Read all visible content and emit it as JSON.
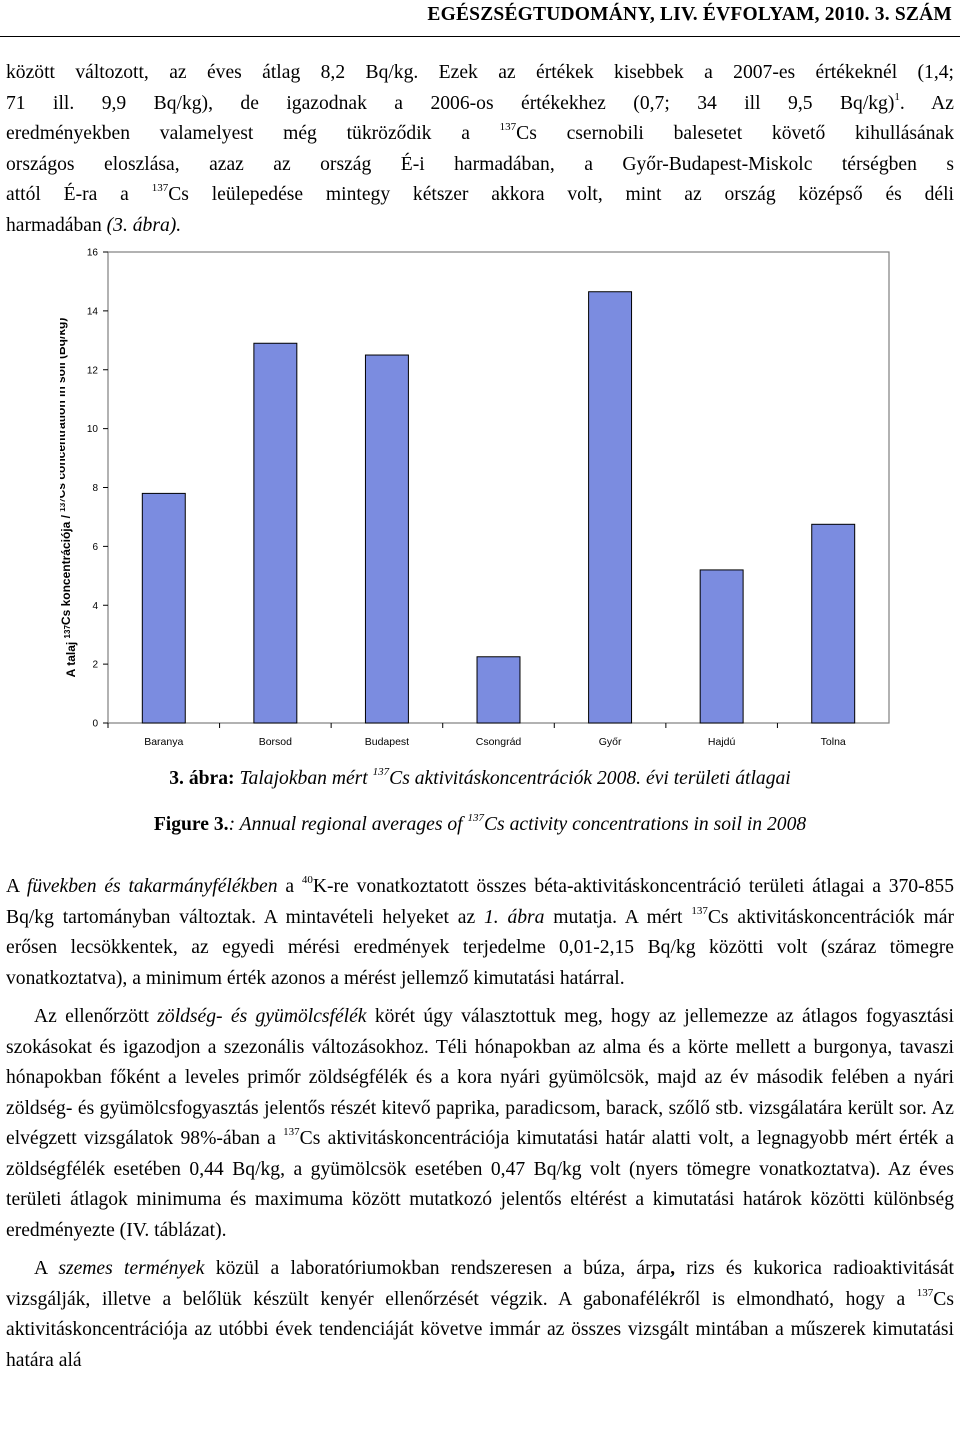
{
  "header": {
    "journal": "EGÉSZSÉGTUDOMÁNY, LIV. ÉVFOLYAM, 2010. 3. SZÁM"
  },
  "para1": {
    "l1": "között változott, az éves átlag 8,2 Bq/kg. Ezek az értékek kisebbek a 2007-es értékeknél (1,4;",
    "l2a": "71 ill. 9,9 Bq/kg), de igazodnak a 2006-os értékekhez (0,7; 34 ill 9,5 Bq/kg)",
    "l2sup": "1",
    "l2b": ". Az",
    "l3a": "eredményekben valamelyest még tükröződik a ",
    "l3sup": "137",
    "l3b": "Cs csernobili balesetet követő kihullásának",
    "l4": "országos eloszlása, azaz az ország É-i harmadában, a Győr-Budapest-Miskolc térségben s",
    "l5a": "attól É-ra a ",
    "l5sup": "137",
    "l5b": "Cs leülepedése mintegy kétszer akkora volt, mint az ország középső és déli",
    "l6a": "harmadában ",
    "l6b": "(3. ábra)."
  },
  "chart_data": {
    "type": "bar",
    "categories": [
      "Baranya",
      "Borsod",
      "Budapest",
      "Csongrád",
      "Győr",
      "Hajdú",
      "Tolna"
    ],
    "values": [
      7.8,
      12.9,
      12.5,
      2.25,
      14.65,
      5.2,
      6.75
    ],
    "ylabel_a": "A talaj ",
    "ylabel_sup": "137",
    "ylabel_b": "Cs koncentrációja / ",
    "ylabel_sup2": "137",
    "ylabel_c": "Cs concentration in soil (Bq/kg)",
    "ylim": [
      0,
      16
    ],
    "yticks": [
      "0",
      "2",
      "4",
      "6",
      "8",
      "10",
      "12",
      "14",
      "16"
    ],
    "bar_color": "#7b8ce0",
    "plot_border": "#7f7f7f",
    "grid": false
  },
  "caption_hu": {
    "label": "3. ábra:",
    "text_a": " Talajokban mért ",
    "sup": "137",
    "text_b": "Cs aktivitáskoncentrációk 2008. évi területi átlagai"
  },
  "caption_en": {
    "label": "Figure 3.",
    "text_a": ": Annual regional averages of ",
    "sup": "137",
    "text_b": "Cs activity concentrations in soil in 2008"
  },
  "para2": {
    "a": "A ",
    "b": "füvekben és takarmányfélékben",
    "c": " a ",
    "sup1": "40",
    "d": "K-re vonatkoztatott összes béta-aktivitáskoncentráció területi átlagai a 370-855 Bq/kg tartományban változtak. A mintavételi helyeket az ",
    "e": "1. ábra",
    "f": " mutatja. A mért ",
    "sup2": "137",
    "g": "Cs aktivitáskoncentrációk már erősen lecsökkentek, az egyedi mérési eredmények terjedelme 0,01-2,15 Bq/kg közötti volt (száraz tömegre vonatkoztatva), a minimum érték azonos a mérést jellemző kimutatási határral."
  },
  "para3": {
    "a": "Az ellenőrzött ",
    "b": "zöldség- és gyümölcsfélék",
    "c": " körét úgy választottuk meg, hogy az jellemezze az átlagos fogyasztási szokásokat és igazodjon a szezonális változásokhoz. Téli hónapokban az alma és a körte mellett a burgonya, tavaszi hónapokban főként a leveles primőr zöldségfélék és a kora nyári gyümölcsök, majd az év második felében a nyári zöldség- és gyümölcsfogyasztás jelentős részét kitevő paprika, paradicsom, barack, szőlő stb. vizsgálatára került sor. Az elvégzett vizsgálatok 98%-ában a ",
    "sup": "137",
    "d": "Cs aktivitáskoncentrációja kimutatási határ alatti volt, a legnagyobb mért érték a zöldségfélék esetében 0,44 Bq/kg, a gyümölcsök esetében 0,47 Bq/kg volt (nyers tömegre vonatkoztatva). Az éves területi átlagok minimuma és maximuma között mutatkozó jelentős eltérést a kimutatási határok közötti különbség eredményezte (IV. táblázat)."
  },
  "para4": {
    "a": "A ",
    "b": "szemes termények",
    "c": " közül a laboratóriumokban rendszeresen a búza, árpa",
    "d": ",",
    "e": " rizs és kukorica radioaktivitását vizsgálják, illetve a belőlük készült kenyér ellenőrzését végzik. A gabonafélékről is elmondható, hogy a ",
    "sup": "137",
    "f": "Cs aktivitáskoncentrációja az utóbbi évek tendenciáját követve immár az összes vizsgált mintában a műszerek kimutatási határa alá"
  }
}
